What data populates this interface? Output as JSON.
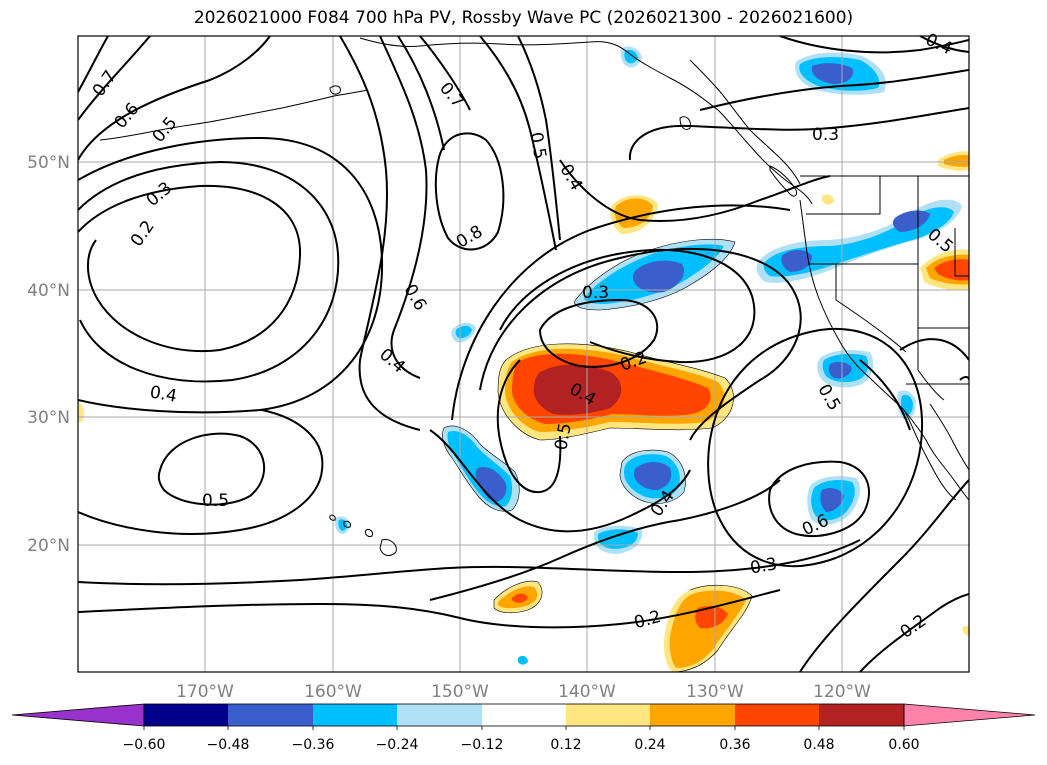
{
  "title": "2026021000 F084 700 hPa PV, Rossby Wave PC (2026021300 - 2026021600)",
  "map": {
    "lat_labels": [
      "50°N",
      "40°N",
      "30°N",
      "20°N"
    ],
    "lon_labels": [
      "170°W",
      "160°W",
      "150°W",
      "140°W",
      "130°W",
      "120°W"
    ],
    "contour_labels": [
      "0.7",
      "0.6",
      "0.5",
      "0.3",
      "0.2",
      "0.4",
      "0.5",
      "0.7",
      "0.8",
      "0.6",
      "0.5",
      "0.4",
      "0.4",
      "0.3",
      "0.2",
      "0.4",
      "0.5",
      "0.5",
      "0.4",
      "0.6",
      "0.5",
      "0.3",
      "0.2",
      "0.2",
      "0.3",
      "0.4"
    ]
  },
  "colorbar": {
    "tick_labels": [
      "−0.60",
      "−0.48",
      "−0.36",
      "−0.24",
      "−0.12",
      "0.12",
      "0.24",
      "0.36",
      "0.48",
      "0.60"
    ],
    "colors": [
      "#9932CC",
      "#00008B",
      "#3A5FCD",
      "#00BFFF",
      "#B0E0F6",
      "#FFFFFF",
      "#FFE680",
      "#FFA500",
      "#FF4500",
      "#B22222",
      "#FF82AB"
    ]
  },
  "fill_colors": {
    "yellow": "#FFE680",
    "orange": "#FFA500",
    "redorange": "#FF4500",
    "darkred": "#B22222",
    "lightblue": "#B0E0F6",
    "cyan": "#00BFFF",
    "blue": "#3A5FCD",
    "navy": "#00008B"
  }
}
